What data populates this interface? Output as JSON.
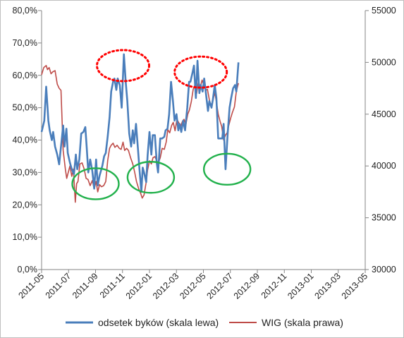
{
  "chart_data": {
    "type": "line",
    "x_ticks": [
      "2011-05",
      "2011-07",
      "2011-09",
      "2011-11",
      "2012-01",
      "2012-03",
      "2012-05",
      "2012-07",
      "2012-09",
      "2012-11",
      "2013-01",
      "2013-03",
      "2013-05"
    ],
    "y_left": {
      "ticks": [
        "0,0%",
        "10,0%",
        "20,0%",
        "30,0%",
        "40,0%",
        "50,0%",
        "60,0%",
        "70,0%",
        "80,0%"
      ],
      "min": 0,
      "max": 80
    },
    "y_right": {
      "ticks": [
        "30000",
        "35000",
        "40000",
        "45000",
        "50000",
        "55000"
      ],
      "min": 30000,
      "max": 55000
    },
    "grid": false,
    "legend_position": "bottom",
    "series": [
      {
        "name": "odsetek byków (skala lewa)",
        "axis": "left",
        "color": "#4a7ebb",
        "points": [
          [
            0,
            42.5
          ],
          [
            0.1,
            46
          ],
          [
            0.17,
            56.5
          ],
          [
            0.25,
            46
          ],
          [
            0.3,
            43
          ],
          [
            0.38,
            40
          ],
          [
            0.43,
            42.5
          ],
          [
            0.5,
            38
          ],
          [
            0.58,
            35.5
          ],
          [
            0.65,
            32.5
          ],
          [
            0.72,
            38
          ],
          [
            0.8,
            44.5
          ],
          [
            0.85,
            38
          ],
          [
            0.92,
            43.5
          ],
          [
            0.97,
            36
          ],
          [
            1.05,
            33
          ],
          [
            1.12,
            31
          ],
          [
            1.2,
            29.5
          ],
          [
            1.27,
            35.5
          ],
          [
            1.32,
            31
          ],
          [
            1.4,
            34
          ],
          [
            1.47,
            42
          ],
          [
            1.55,
            42.5
          ],
          [
            1.62,
            44
          ],
          [
            1.67,
            38
          ],
          [
            1.73,
            30
          ],
          [
            1.8,
            34
          ],
          [
            1.88,
            30.5
          ],
          [
            1.95,
            25
          ],
          [
            2.02,
            34
          ],
          [
            2.08,
            26
          ],
          [
            2.15,
            29
          ],
          [
            2.25,
            32
          ],
          [
            2.32,
            35
          ],
          [
            2.38,
            36
          ],
          [
            2.45,
            41
          ],
          [
            2.52,
            47
          ],
          [
            2.58,
            55
          ],
          [
            2.65,
            58
          ],
          [
            2.7,
            59
          ],
          [
            2.77,
            55.5
          ],
          [
            2.82,
            59
          ],
          [
            2.9,
            57
          ],
          [
            2.97,
            50
          ],
          [
            3.05,
            66.5
          ],
          [
            3.12,
            58
          ],
          [
            3.18,
            52
          ],
          [
            3.25,
            42
          ],
          [
            3.32,
            38
          ],
          [
            3.38,
            43
          ],
          [
            3.43,
            39
          ],
          [
            3.5,
            45
          ],
          [
            3.57,
            37.5
          ],
          [
            3.63,
            31
          ],
          [
            3.7,
            24
          ],
          [
            3.75,
            31.5
          ],
          [
            3.8,
            30
          ],
          [
            3.88,
            27
          ],
          [
            3.93,
            35
          ],
          [
            4.0,
            42.5
          ],
          [
            4.07,
            35.5
          ],
          [
            4.12,
            41.5
          ],
          [
            4.2,
            41.5
          ],
          [
            4.27,
            33
          ],
          [
            4.32,
            30
          ],
          [
            4.4,
            40.5
          ],
          [
            4.47,
            40.5
          ],
          [
            4.55,
            41
          ],
          [
            4.6,
            43
          ],
          [
            4.67,
            43.5
          ],
          [
            4.73,
            48
          ],
          [
            4.8,
            58
          ],
          [
            4.87,
            52
          ],
          [
            4.93,
            46
          ],
          [
            5.0,
            48
          ],
          [
            5.07,
            43
          ],
          [
            5.12,
            45
          ],
          [
            5.18,
            42.5
          ],
          [
            5.25,
            46
          ],
          [
            5.32,
            43
          ],
          [
            5.4,
            50
          ],
          [
            5.47,
            58
          ],
          [
            5.52,
            58
          ],
          [
            5.6,
            61
          ],
          [
            5.65,
            63
          ],
          [
            5.72,
            53
          ],
          [
            5.78,
            64.5
          ],
          [
            5.85,
            54.5
          ],
          [
            5.9,
            57
          ],
          [
            5.97,
            55
          ],
          [
            6.03,
            59
          ],
          [
            6.1,
            54
          ],
          [
            6.17,
            49
          ],
          [
            6.22,
            52
          ],
          [
            6.3,
            50
          ],
          [
            6.35,
            52.5
          ],
          [
            6.42,
            57
          ],
          [
            6.48,
            53
          ],
          [
            6.55,
            40.5
          ],
          [
            6.62,
            40.5
          ],
          [
            6.7,
            40.5
          ],
          [
            6.75,
            45
          ],
          [
            6.82,
            31
          ],
          [
            6.9,
            42
          ],
          [
            6.97,
            50
          ],
          [
            7.03,
            53
          ],
          [
            7.1,
            56
          ],
          [
            7.17,
            57
          ],
          [
            7.22,
            55
          ],
          [
            7.3,
            64
          ]
        ]
      },
      {
        "name": "WIG (skala prawa)",
        "axis": "right",
        "color": "#be4b48",
        "points": [
          [
            0,
            48800
          ],
          [
            0.08,
            49500
          ],
          [
            0.17,
            49700
          ],
          [
            0.22,
            49300
          ],
          [
            0.28,
            49500
          ],
          [
            0.35,
            48900
          ],
          [
            0.42,
            49100
          ],
          [
            0.5,
            49200
          ],
          [
            0.58,
            47900
          ],
          [
            0.65,
            47500
          ],
          [
            0.72,
            47300
          ],
          [
            0.8,
            41500
          ],
          [
            0.88,
            39700
          ],
          [
            0.93,
            38800
          ],
          [
            1.0,
            39500
          ],
          [
            1.05,
            40000
          ],
          [
            1.12,
            39000
          ],
          [
            1.18,
            39700
          ],
          [
            1.25,
            36500
          ],
          [
            1.3,
            38300
          ],
          [
            1.35,
            38500
          ],
          [
            1.42,
            40200
          ],
          [
            1.5,
            40300
          ],
          [
            1.58,
            39700
          ],
          [
            1.65,
            38800
          ],
          [
            1.72,
            38700
          ],
          [
            1.8,
            38100
          ],
          [
            1.88,
            38600
          ],
          [
            1.95,
            37800
          ],
          [
            2.02,
            38500
          ],
          [
            2.08,
            37500
          ],
          [
            2.15,
            38200
          ],
          [
            2.22,
            38000
          ],
          [
            2.3,
            38100
          ],
          [
            2.38,
            38500
          ],
          [
            2.45,
            40500
          ],
          [
            2.52,
            41700
          ],
          [
            2.58,
            42000
          ],
          [
            2.65,
            42200
          ],
          [
            2.72,
            41800
          ],
          [
            2.8,
            42000
          ],
          [
            2.88,
            41700
          ],
          [
            2.95,
            41600
          ],
          [
            3.02,
            42300
          ],
          [
            3.08,
            41500
          ],
          [
            3.15,
            41700
          ],
          [
            3.22,
            41500
          ],
          [
            3.3,
            40800
          ],
          [
            3.38,
            40200
          ],
          [
            3.45,
            39400
          ],
          [
            3.52,
            38500
          ],
          [
            3.6,
            37800
          ],
          [
            3.68,
            37300
          ],
          [
            3.73,
            36900
          ],
          [
            3.8,
            37200
          ],
          [
            3.87,
            38300
          ],
          [
            3.93,
            39600
          ],
          [
            4.0,
            40500
          ],
          [
            4.07,
            40200
          ],
          [
            4.13,
            40800
          ],
          [
            4.2,
            40900
          ],
          [
            4.27,
            40500
          ],
          [
            4.33,
            40300
          ],
          [
            4.4,
            40800
          ],
          [
            4.47,
            41700
          ],
          [
            4.55,
            41600
          ],
          [
            4.62,
            42300
          ],
          [
            4.68,
            43500
          ],
          [
            4.75,
            43200
          ],
          [
            4.82,
            43900
          ],
          [
            4.88,
            44200
          ],
          [
            4.95,
            43400
          ],
          [
            5.02,
            44500
          ],
          [
            5.08,
            44200
          ],
          [
            5.15,
            43800
          ],
          [
            5.22,
            44300
          ],
          [
            5.28,
            44500
          ],
          [
            5.35,
            44000
          ],
          [
            5.42,
            45000
          ],
          [
            5.48,
            45400
          ],
          [
            5.55,
            46200
          ],
          [
            5.62,
            47400
          ],
          [
            5.68,
            47800
          ],
          [
            5.75,
            47000
          ],
          [
            5.82,
            48200
          ],
          [
            5.88,
            47500
          ],
          [
            5.95,
            48300
          ],
          [
            6.02,
            47800
          ],
          [
            6.08,
            47300
          ],
          [
            6.15,
            47400
          ],
          [
            6.22,
            46400
          ],
          [
            6.28,
            45800
          ],
          [
            6.35,
            46300
          ],
          [
            6.42,
            47100
          ],
          [
            6.48,
            46200
          ],
          [
            6.55,
            45000
          ],
          [
            6.62,
            44300
          ],
          [
            6.68,
            43800
          ],
          [
            6.75,
            42500
          ],
          [
            6.82,
            43000
          ],
          [
            6.88,
            43200
          ],
          [
            6.95,
            44000
          ],
          [
            7.02,
            44700
          ],
          [
            7.08,
            45200
          ],
          [
            7.15,
            45700
          ],
          [
            7.22,
            47200
          ],
          [
            7.3,
            48000
          ]
        ]
      }
    ],
    "annotations": [
      {
        "shape": "ellipse",
        "style": "dotted",
        "color": "#ff0000",
        "x": 3.02,
        "y_left": 63
      },
      {
        "shape": "ellipse",
        "style": "dotted",
        "color": "#ff0000",
        "x": 5.9,
        "y_left": 61
      },
      {
        "shape": "ellipse",
        "style": "solid",
        "color": "#22b14c",
        "x": 2.0,
        "y_left": 26.5
      },
      {
        "shape": "ellipse",
        "style": "solid",
        "color": "#22b14c",
        "x": 4.05,
        "y_left": 28.5
      },
      {
        "shape": "ellipse",
        "style": "solid",
        "color": "#22b14c",
        "x": 6.88,
        "y_left": 31
      }
    ]
  }
}
